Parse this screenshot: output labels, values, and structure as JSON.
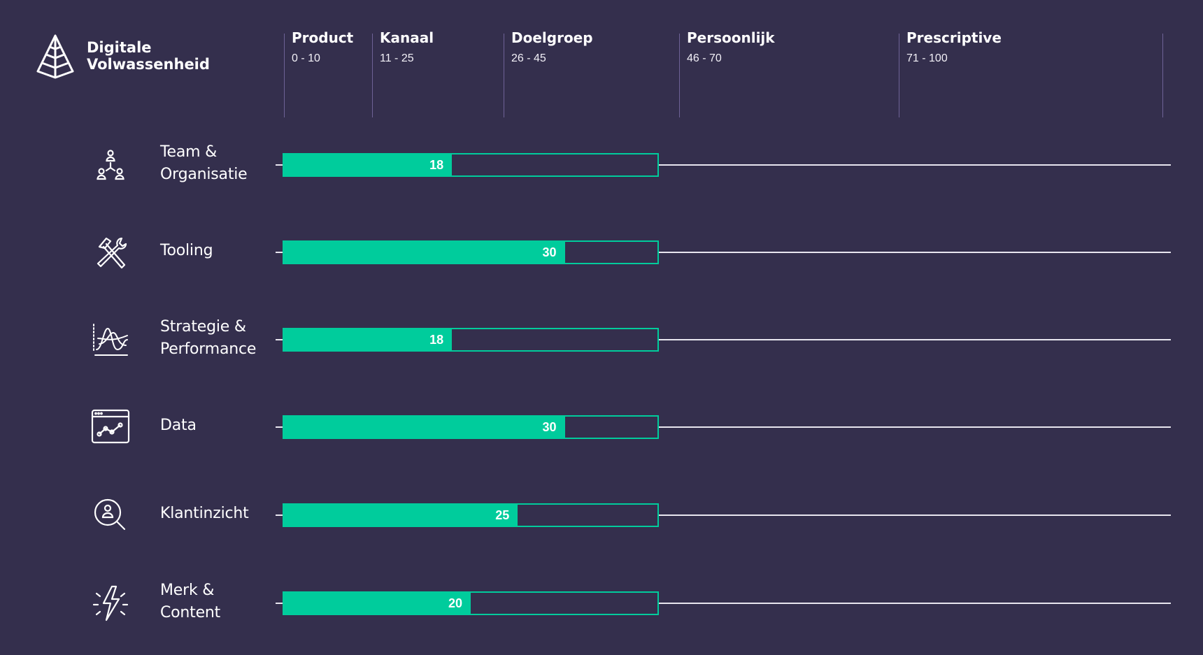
{
  "header": {
    "title_line1": "Digitale",
    "title_line2": "Volwassenheid",
    "logo_icon": "pyramid-icon"
  },
  "colors": {
    "background": "#342f4d",
    "bar": "#00cc9c",
    "divider": "#6e6296",
    "track": "#e8e6ef"
  },
  "chart_data": {
    "type": "bar",
    "orientation": "horizontal",
    "xlim": [
      0,
      100
    ],
    "target_value": 40,
    "stages": [
      {
        "name": "Product",
        "range": "0 - 10",
        "start": 0
      },
      {
        "name": "Kanaal",
        "range": "11 - 25",
        "start": 11
      },
      {
        "name": "Doelgroep",
        "range": "26 - 45",
        "start": 26
      },
      {
        "name": "Persoonlijk",
        "range": "46 - 70",
        "start": 46
      },
      {
        "name": "Prescriptive",
        "range": "71 - 100",
        "start": 71
      }
    ],
    "categories": [
      {
        "label_lines": [
          "Team &",
          "Organisatie"
        ],
        "icon": "team-organization-icon",
        "value": 18,
        "value_label": "18"
      },
      {
        "label_lines": [
          "Tooling"
        ],
        "icon": "tools-icon",
        "value": 30,
        "value_label": "30"
      },
      {
        "label_lines": [
          "Strategie &",
          "Performance"
        ],
        "icon": "strategy-curve-icon",
        "value": 18,
        "value_label": "18"
      },
      {
        "label_lines": [
          "Data"
        ],
        "icon": "data-chart-icon",
        "value": 30,
        "value_label": "30"
      },
      {
        "label_lines": [
          "Klantinzicht"
        ],
        "icon": "customer-search-icon",
        "value": 25,
        "value_label": "25"
      },
      {
        "label_lines": [
          "Merk &",
          "Content"
        ],
        "icon": "brand-lightning-icon",
        "value": 20,
        "value_label": "20"
      }
    ]
  }
}
